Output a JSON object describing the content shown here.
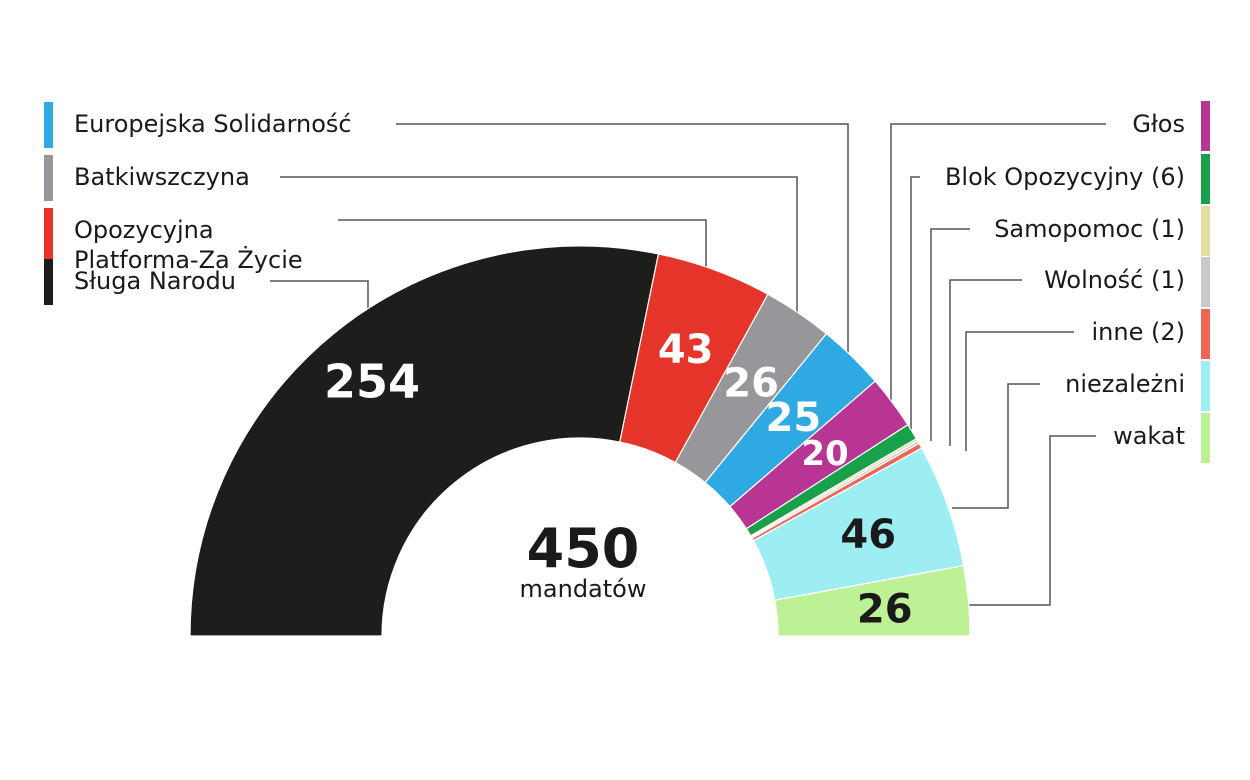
{
  "chart_data": {
    "type": "pie",
    "subtype": "half-donut (parliament seats)",
    "total": {
      "value": "450",
      "label": "mandatów"
    },
    "segments": [
      {
        "name": "Sługa Narodu",
        "value": 254,
        "label": "254",
        "color": "#1d1d1b",
        "label_color": "#ffffff"
      },
      {
        "name": "Opozycyjna Platforma-Za Życie",
        "value": 43,
        "label": "43",
        "color": "#e5352b",
        "label_color": "#ffffff"
      },
      {
        "name": "Batkiwszczyna",
        "value": 26,
        "label": "26",
        "color": "#97979b",
        "label_color": "#ffffff"
      },
      {
        "name": "Europejska Solidarność",
        "value": 25,
        "label": "25",
        "color": "#2ea9e2",
        "label_color": "#ffffff"
      },
      {
        "name": "Głos",
        "value": 20,
        "label": "20",
        "color": "#b83593",
        "label_color": "#ffffff"
      },
      {
        "name": "Blok Opozycyjny (6)",
        "value": 6,
        "label": "",
        "color": "#19a04b",
        "label_color": "#ffffff"
      },
      {
        "name": "Samopomoc (1)",
        "value": 1,
        "label": "",
        "color": "#e3dea0",
        "label_color": "#1a1a1a"
      },
      {
        "name": "Wolność (1)",
        "value": 1,
        "label": "",
        "color": "#c9c9c9",
        "label_color": "#1a1a1a"
      },
      {
        "name": "inne (2)",
        "value": 2,
        "label": "",
        "color": "#ef6556",
        "label_color": "#1a1a1a"
      },
      {
        "name": "niezależni",
        "value": 46,
        "label": "46",
        "color": "#9ceef2",
        "label_color": "#1a1a1a"
      },
      {
        "name": "wakat",
        "value": 26,
        "label": "26",
        "color": "#bdf196",
        "label_color": "#1a1a1a"
      }
    ],
    "legend_left": [
      "Europejska Solidarność",
      "Batkiwszczyna",
      "Opozycyjna Platforma-Za Życie",
      "Sługa Narodu"
    ],
    "legend_left_lines": [
      [
        "Europejska Solidarność"
      ],
      [
        "Batkiwszczyna"
      ],
      [
        "Opozycyjna",
        "Platforma-Za Życie"
      ],
      [
        "Sługa Narodu"
      ]
    ],
    "legend_right": [
      "Głos",
      "Blok Opozycyjny (6)",
      "Samopomoc (1)",
      "Wolność (1)",
      "inne (2)",
      "niezależni",
      "wakat"
    ]
  }
}
